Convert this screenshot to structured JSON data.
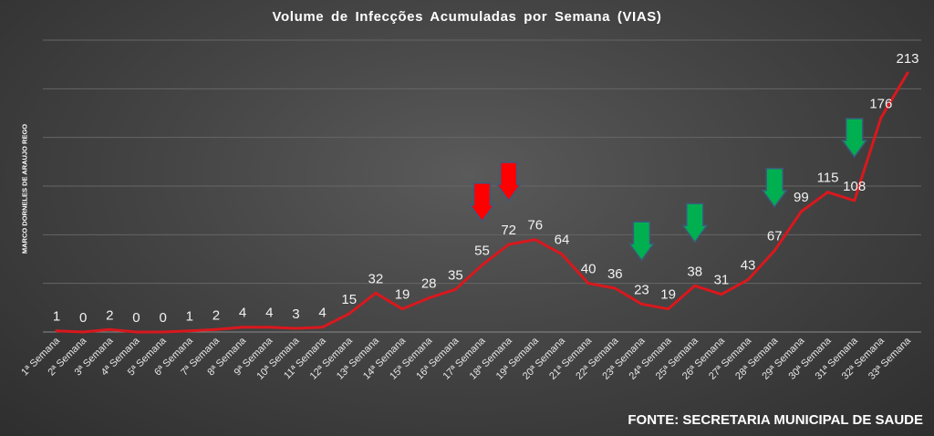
{
  "chart_data": {
    "type": "line",
    "title": "Volume  de  Infecções  Acumuladas  por  Semana  (VIAS)",
    "ylabel": "MARCO DORNELES DE ARAUJO REGO",
    "source": "FONTE: SECRETARIA MUNICIPAL DE SAUDE",
    "categories": [
      "1ª Semana",
      "2ª Semana",
      "3ª Semana",
      "4ª Semana",
      "5ª Semana",
      "6ª Semana",
      "7ª Semana",
      "8ª Semana",
      "9ª Semana",
      "10ª Semana",
      "11ª Semana",
      "12ª Semana",
      "13ª Semana",
      "14ª Semana",
      "15ª Semana",
      "16ª Semana",
      "17ª Semana",
      "18ª Semana",
      "19ª Semana",
      "20ª Semana",
      "21ª Semana",
      "22ª Semana",
      "23ª Semana",
      "24ª Semana",
      "25ª Semana",
      "26ª Semana",
      "27ª Semana",
      "28ª Semana",
      "29ª Semana",
      "30ª Semana",
      "31ª Semana",
      "32ª Semana",
      "33ª Semana"
    ],
    "series": [
      {
        "values": [
          1,
          0,
          2,
          0,
          0,
          1,
          2,
          4,
          4,
          3,
          4,
          15,
          32,
          19,
          28,
          35,
          55,
          72,
          76,
          64,
          40,
          36,
          23,
          19,
          38,
          31,
          43,
          67,
          99,
          115,
          108,
          176,
          213
        ],
        "color": "#d9181d"
      }
    ],
    "ylim": [
      0,
      240
    ],
    "grid": true,
    "legend": "none",
    "markers": [
      {
        "category": "17ª Semana",
        "direction": "down",
        "color": "#ff0000"
      },
      {
        "category": "18ª Semana",
        "direction": "down",
        "color": "#ff0000"
      },
      {
        "category": "23ª Semana",
        "direction": "down",
        "color": "#00b050"
      },
      {
        "category": "25ª Semana",
        "direction": "down",
        "color": "#00b050"
      },
      {
        "category": "28ª Semana",
        "direction": "down",
        "color": "#00b050"
      },
      {
        "category": "31ª Semana",
        "direction": "down",
        "color": "#00b050"
      }
    ]
  }
}
